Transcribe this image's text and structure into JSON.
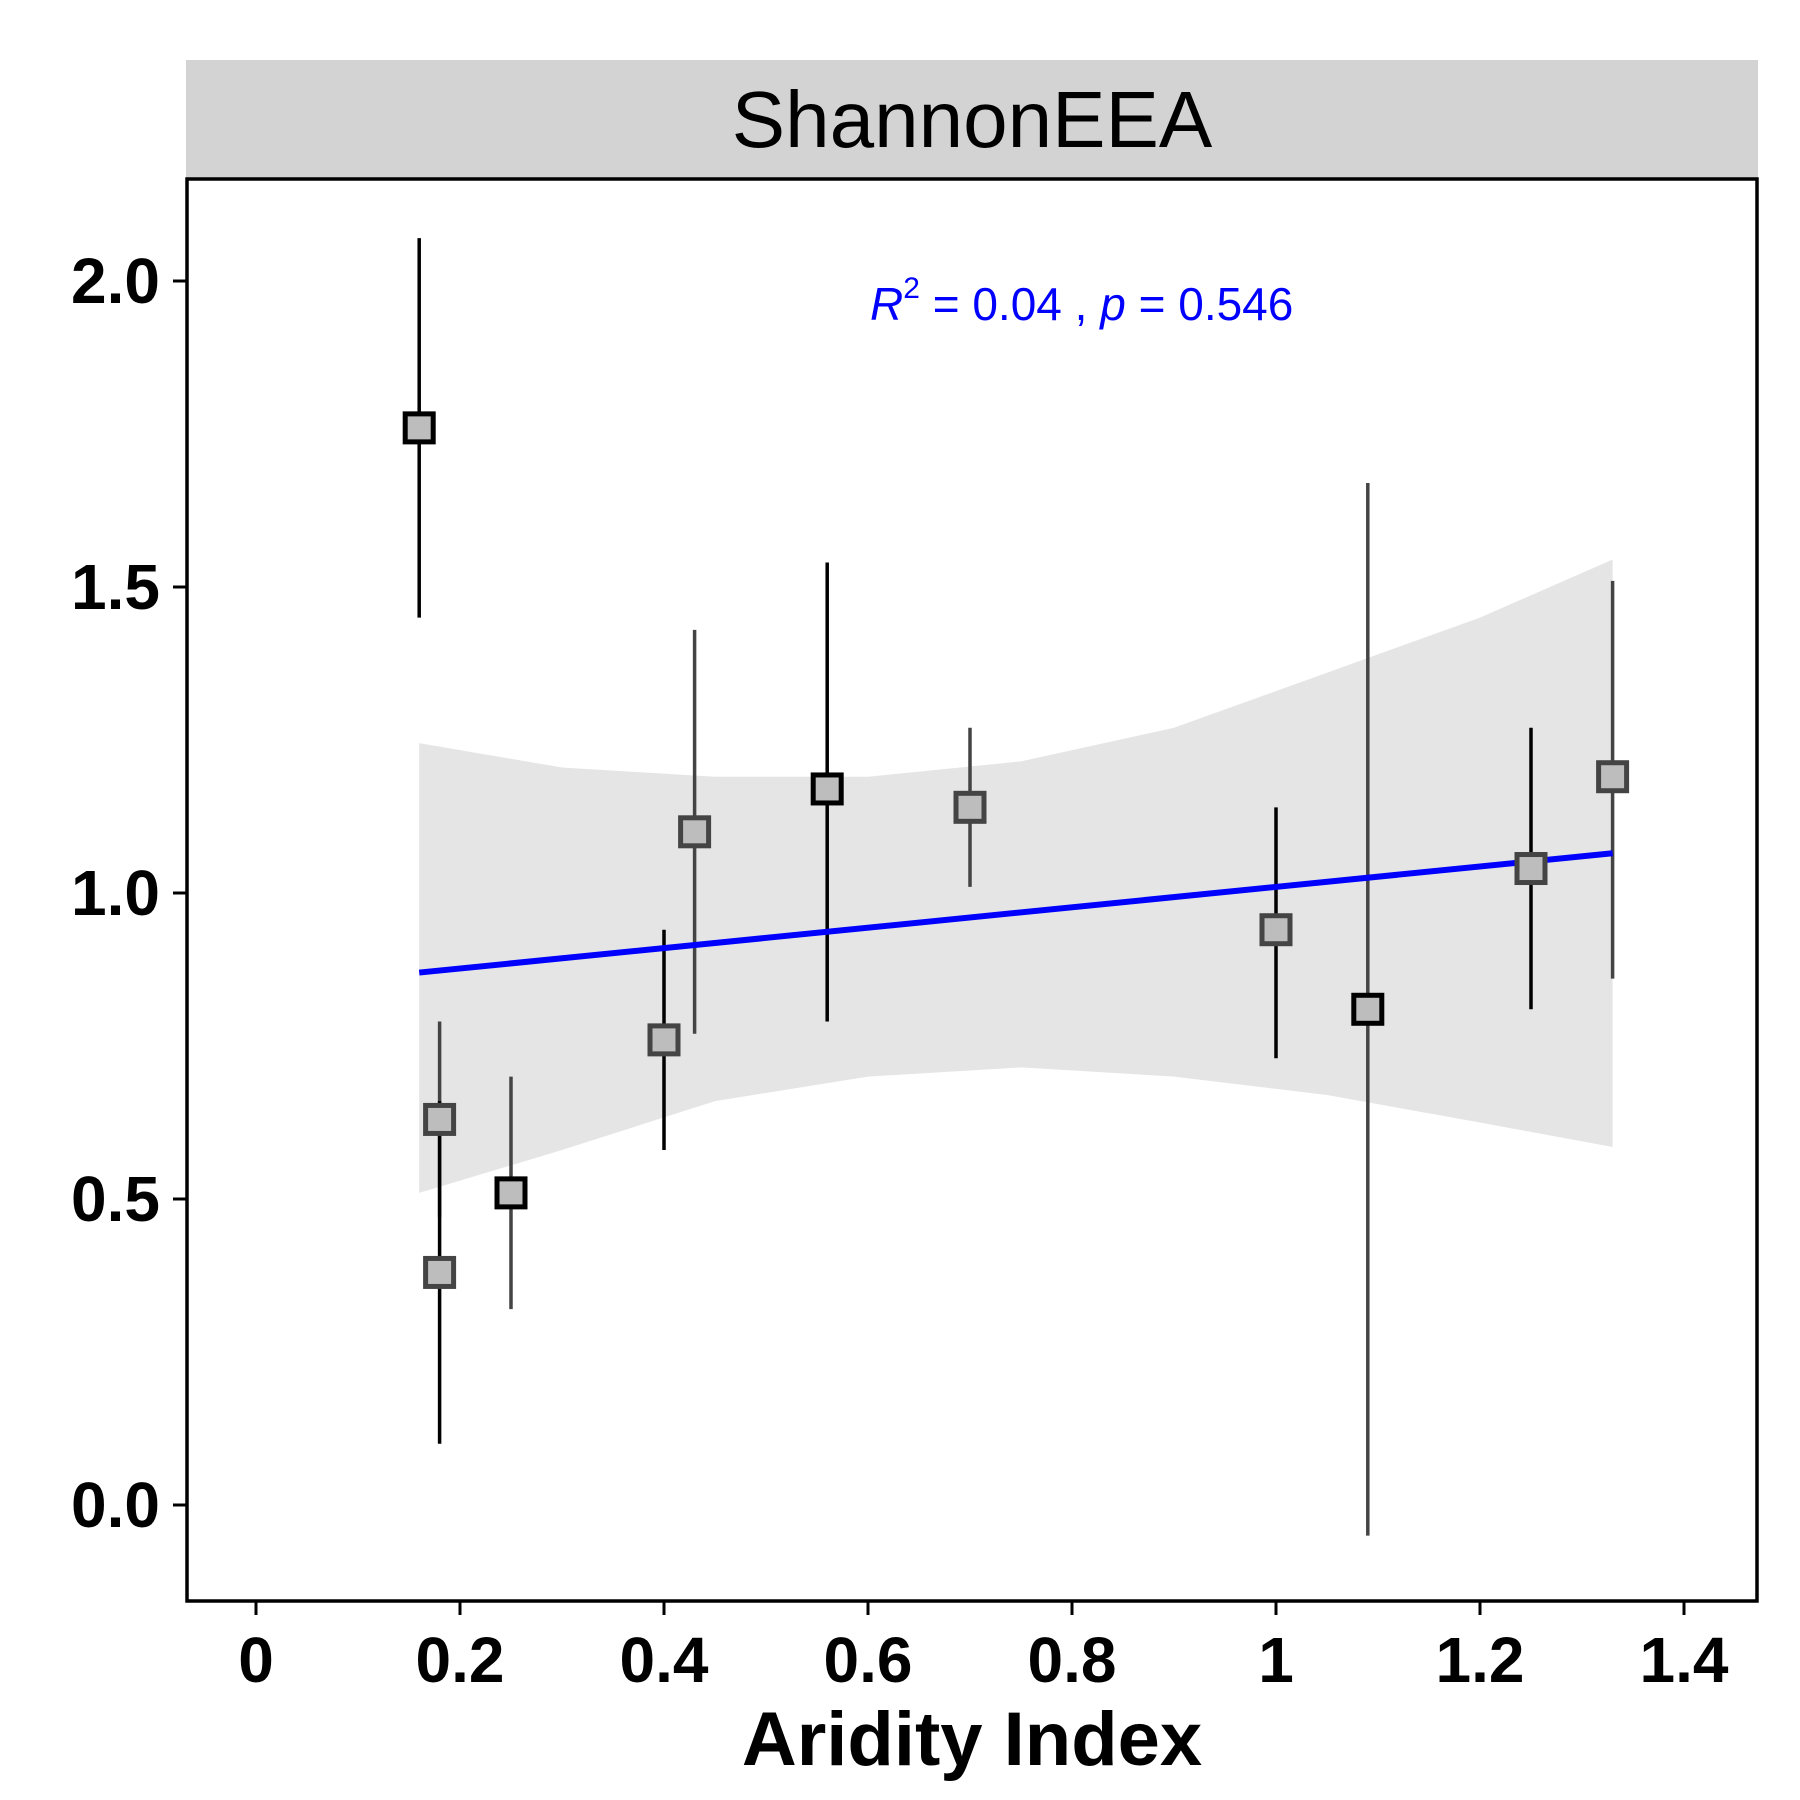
{
  "chart_data": {
    "type": "scatter",
    "facet_title": "ShannonEEA",
    "xlabel": "Aridity Index",
    "ylabel": "",
    "xlim": [
      -0.07,
      1.47
    ],
    "ylim": [
      -0.15,
      2.17
    ],
    "x_ticks": [
      0,
      0.2,
      0.4,
      0.6,
      0.8,
      1.0,
      1.2,
      1.4
    ],
    "x_tick_labels": [
      "0",
      "0.2",
      "0.4",
      "0.6",
      "0.8",
      "1",
      "1.2",
      "1.4"
    ],
    "y_ticks": [
      0.0,
      0.5,
      1.0,
      1.5,
      2.0
    ],
    "y_tick_labels": [
      "0.0",
      "0.5",
      "1.0",
      "1.5",
      "2.0"
    ],
    "grid": false,
    "points": [
      {
        "x": 0.16,
        "y": 1.76,
        "ymin": 1.45,
        "ymax": 2.07
      },
      {
        "x": 0.18,
        "y": 0.63,
        "ymin": 0.47,
        "ymax": 0.79
      },
      {
        "x": 0.18,
        "y": 0.38,
        "ymin": 0.1,
        "ymax": 0.66
      },
      {
        "x": 0.25,
        "y": 0.51,
        "ymin": 0.32,
        "ymax": 0.7
      },
      {
        "x": 0.4,
        "y": 0.76,
        "ymin": 0.58,
        "ymax": 0.94
      },
      {
        "x": 0.43,
        "y": 1.1,
        "ymin": 0.77,
        "ymax": 1.43
      },
      {
        "x": 0.56,
        "y": 1.17,
        "ymin": 0.79,
        "ymax": 1.54
      },
      {
        "x": 0.7,
        "y": 1.14,
        "ymin": 1.01,
        "ymax": 1.27
      },
      {
        "x": 1.0,
        "y": 0.94,
        "ymin": 0.73,
        "ymax": 1.14
      },
      {
        "x": 1.09,
        "y": 0.81,
        "ymin": -0.05,
        "ymax": 1.67
      },
      {
        "x": 1.25,
        "y": 1.04,
        "ymin": 0.81,
        "ymax": 1.27
      },
      {
        "x": 1.33,
        "y": 1.19,
        "ymin": 0.86,
        "ymax": 1.51
      }
    ],
    "fit": {
      "x": [
        0.16,
        1.33
      ],
      "y": [
        0.87,
        1.065
      ],
      "color": "#0000ff"
    },
    "confidence_band": {
      "x": [
        0.16,
        0.3,
        0.45,
        0.6,
        0.75,
        0.9,
        1.05,
        1.2,
        1.33
      ],
      "lower": [
        0.51,
        0.58,
        0.66,
        0.7,
        0.715,
        0.7,
        0.67,
        0.625,
        0.585
      ],
      "upper": [
        1.245,
        1.205,
        1.19,
        1.19,
        1.215,
        1.27,
        1.36,
        1.45,
        1.545
      ],
      "color": "#e5e5e5"
    },
    "annotation": {
      "r_symbol": "R",
      "r_superscript": "2",
      "r_rest": " = 0.04 , ",
      "p_symbol": "p",
      "p_rest": " = 0.546",
      "color": "#0000ff"
    },
    "strip_color": "#d3d3d3",
    "marker_fill": "#bdbdbd"
  }
}
